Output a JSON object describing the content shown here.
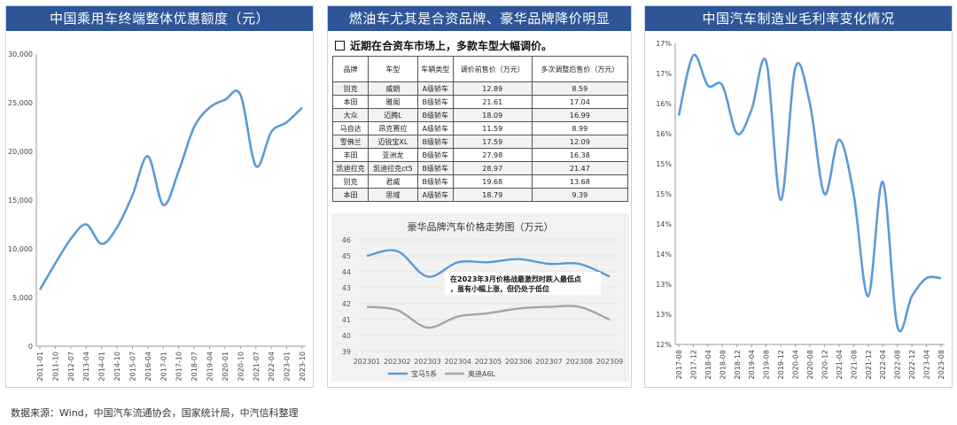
{
  "panels": {
    "left": {
      "title": "中国乘用车终端整体优惠额度（元）"
    },
    "middle": {
      "title": "燃油车尤其是合资品牌、豪华品牌降价明显",
      "subheading": "近期在合资车市场上，多款车型大幅调价。"
    },
    "right": {
      "title": "中国汽车制造业毛利率变化情况"
    }
  },
  "source": "数据来源：Wind，中国汽车流通协会，国家统计局，中汽信科整理",
  "colors": {
    "header_bg": "#2e5597",
    "line_blue": "#5b9bd5",
    "line_gray": "#a5a5a5"
  },
  "price_table": {
    "headers": [
      "品牌",
      "车型",
      "车辆类型",
      "调价前售价（万元）",
      "多次调整后售价（万元）"
    ],
    "rows": [
      [
        "别克",
        "威朗",
        "A级轿车",
        "12.89",
        "8.59"
      ],
      [
        "本田",
        "雅阁",
        "B级轿车",
        "21.61",
        "17.04"
      ],
      [
        "大众",
        "迈腾L",
        "B级轿车",
        "18.09",
        "16.99"
      ],
      [
        "马自达",
        "昂克赛拉",
        "A级轿车",
        "11.59",
        "8.99"
      ],
      [
        "雪佛兰",
        "迈锐宝XL",
        "B级轿车",
        "17.59",
        "12.09"
      ],
      [
        "丰田",
        "亚洲龙",
        "B级轿车",
        "27.98",
        "16.38"
      ],
      [
        "凯迪拉克",
        "凯迪拉克ct5",
        "B级轿车",
        "28.97",
        "21.47"
      ],
      [
        "别克",
        "君威",
        "B级轿车",
        "19.68",
        "13.68"
      ],
      [
        "本田",
        "思域",
        "A级轿车",
        "18.79",
        "9.39"
      ]
    ]
  },
  "chart_data": [
    {
      "type": "line",
      "title": "",
      "x": [
        "2011-01",
        "2011-10",
        "2012-07",
        "2013-04",
        "2014-01",
        "2014-10",
        "2015-07",
        "2016-04",
        "2017-01",
        "2017-10",
        "2018-07",
        "2019-04",
        "2020-01",
        "2020-10",
        "2021-07",
        "2022-04",
        "2023-01",
        "2023-10"
      ],
      "series": [
        {
          "name": "",
          "values": [
            5800,
            8500,
            11000,
            12500,
            10500,
            12200,
            15500,
            19500,
            14500,
            18000,
            22500,
            24500,
            25300,
            25800,
            18500,
            22000,
            23000,
            24500
          ]
        }
      ],
      "ylim": [
        0,
        30000
      ],
      "yticks": [
        "0",
        "5,000",
        "10,000",
        "15,000",
        "20,000",
        "25,000",
        "30,000"
      ]
    },
    {
      "type": "line",
      "title": "豪华品牌汽车价格走势图（万元）",
      "x": [
        "202301",
        "202302",
        "202303",
        "202304",
        "202305",
        "202306",
        "202307",
        "202308",
        "202309"
      ],
      "series": [
        {
          "name": "宝马5系",
          "values": [
            45.0,
            45.3,
            43.7,
            44.6,
            44.6,
            44.8,
            44.5,
            44.5,
            43.7
          ]
        },
        {
          "name": "奥迪A6L",
          "values": [
            41.8,
            41.6,
            40.5,
            41.2,
            41.4,
            41.7,
            41.8,
            41.8,
            41.0
          ]
        }
      ],
      "ylim": [
        39,
        46
      ],
      "yticks": [
        "39",
        "40",
        "41",
        "42",
        "43",
        "44",
        "45",
        "46"
      ],
      "annotation": "在2023年3月价格战最激烈时跌入最低点，虽有小幅上涨，但仍处于低位",
      "legend": "bottom"
    },
    {
      "type": "line",
      "title": "",
      "x": [
        "2017-08",
        "2017-12",
        "2018-04",
        "2018-08",
        "2018-12",
        "2019-04",
        "2019-08",
        "2019-12",
        "2020-04",
        "2020-08",
        "2020-12",
        "2021-04",
        "2021-08",
        "2021-12",
        "2022-04",
        "2022-08",
        "2022-12",
        "2023-04",
        "2023-08"
      ],
      "series": [
        {
          "name": "",
          "values": [
            15.8,
            16.8,
            16.3,
            16.3,
            15.5,
            15.9,
            16.7,
            14.4,
            16.6,
            16.0,
            14.5,
            15.4,
            14.5,
            12.8,
            14.7,
            12.3,
            12.8,
            13.1,
            13.1
          ]
        }
      ],
      "ylim": [
        12,
        17
      ],
      "yticks": [
        "12%",
        "13%",
        "13%",
        "14%",
        "14%",
        "15%",
        "15%",
        "16%",
        "16%",
        "17%",
        "17%"
      ]
    }
  ]
}
